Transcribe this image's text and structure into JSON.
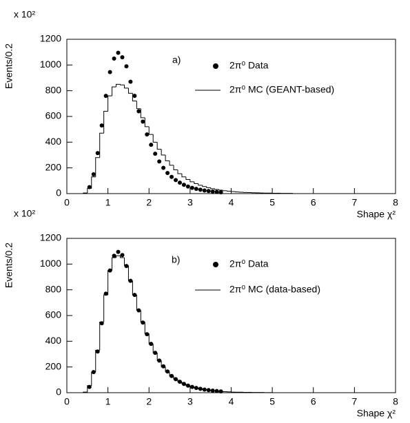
{
  "chart_data": [
    {
      "type": "histogram",
      "multiplier": "x 10²",
      "ylabel": "Events/0.2",
      "xlabel": "Shape χ²",
      "annotation": "a)",
      "xlim": [
        0,
        8
      ],
      "xticks": [
        0,
        1,
        2,
        3,
        4,
        5,
        6,
        7,
        8
      ],
      "ylim": [
        0,
        1200
      ],
      "yticks": [
        0,
        200,
        400,
        600,
        800,
        1000,
        1200
      ],
      "series": [
        {
          "name": "2π⁰ Data",
          "kind": "points",
          "color": "#000000",
          "x": [
            0.55,
            0.65,
            0.75,
            0.85,
            0.95,
            1.05,
            1.15,
            1.25,
            1.35,
            1.45,
            1.55,
            1.65,
            1.75,
            1.85,
            1.95,
            2.05,
            2.15,
            2.25,
            2.35,
            2.45,
            2.55,
            2.65,
            2.75,
            2.85,
            2.95,
            3.05,
            3.15,
            3.25,
            3.35,
            3.45,
            3.55,
            3.65,
            3.75
          ],
          "values": [
            50,
            150,
            315,
            530,
            760,
            945,
            1050,
            1095,
            1060,
            990,
            870,
            760,
            640,
            560,
            460,
            380,
            310,
            250,
            200,
            160,
            130,
            105,
            85,
            68,
            55,
            45,
            37,
            30,
            24,
            20,
            16,
            13,
            10
          ]
        },
        {
          "name": "2π⁰ MC (GEANT-based)",
          "kind": "step",
          "color": "#000000",
          "bins": [
            0.3,
            0.4,
            0.5,
            0.6,
            0.7,
            0.8,
            0.9,
            1.0,
            1.1,
            1.2,
            1.3,
            1.4,
            1.5,
            1.6,
            1.7,
            1.8,
            1.9,
            2.0,
            2.1,
            2.2,
            2.3,
            2.4,
            2.5,
            2.6,
            2.7,
            2.8,
            2.9,
            3.0,
            3.1,
            3.2,
            3.3,
            3.4,
            3.5,
            3.6,
            3.7,
            3.8,
            3.9,
            4.0,
            4.1,
            4.2,
            4.3,
            4.4,
            4.5,
            4.6,
            4.7,
            4.8,
            4.9,
            5.0,
            5.1,
            5.2,
            5.3,
            5.4,
            5.5
          ],
          "values": [
            0,
            5,
            40,
            130,
            280,
            470,
            640,
            760,
            830,
            850,
            845,
            820,
            780,
            720,
            660,
            590,
            520,
            460,
            400,
            345,
            300,
            255,
            220,
            185,
            155,
            130,
            110,
            92,
            78,
            65,
            55,
            46,
            38,
            32,
            27,
            22,
            19,
            16,
            13,
            11,
            9,
            8,
            7,
            6,
            5,
            4,
            4,
            3,
            3,
            2,
            2,
            2
          ]
        }
      ]
    },
    {
      "type": "histogram",
      "multiplier": "x 10²",
      "ylabel": "Events/0.2",
      "xlabel": "Shape χ²",
      "annotation": "b)",
      "xlim": [
        0,
        8
      ],
      "xticks": [
        0,
        1,
        2,
        3,
        4,
        5,
        6,
        7,
        8
      ],
      "ylim": [
        0,
        1200
      ],
      "yticks": [
        0,
        200,
        400,
        600,
        800,
        1000,
        1200
      ],
      "series": [
        {
          "name": "2π⁰ Data",
          "kind": "points",
          "color": "#000000",
          "x": [
            0.55,
            0.65,
            0.75,
            0.85,
            0.95,
            1.05,
            1.15,
            1.25,
            1.35,
            1.45,
            1.55,
            1.65,
            1.75,
            1.85,
            1.95,
            2.05,
            2.15,
            2.25,
            2.35,
            2.45,
            2.55,
            2.65,
            2.75,
            2.85,
            2.95,
            3.05,
            3.15,
            3.25,
            3.35,
            3.45,
            3.55,
            3.65,
            3.75
          ],
          "values": [
            45,
            160,
            320,
            540,
            770,
            950,
            1065,
            1095,
            1070,
            985,
            870,
            760,
            640,
            545,
            455,
            380,
            310,
            250,
            205,
            165,
            130,
            105,
            85,
            68,
            55,
            45,
            37,
            30,
            24,
            20,
            16,
            13,
            10
          ]
        },
        {
          "name": "2π⁰ MC (data-based)",
          "kind": "step",
          "color": "#000000",
          "bins": [
            0.4,
            0.5,
            0.6,
            0.7,
            0.8,
            0.9,
            1.0,
            1.1,
            1.2,
            1.3,
            1.4,
            1.5,
            1.6,
            1.7,
            1.8,
            1.9,
            2.0,
            2.1,
            2.2,
            2.3,
            2.4,
            2.5,
            2.6,
            2.7,
            2.8,
            2.9,
            3.0,
            3.1,
            3.2,
            3.3,
            3.4,
            3.5,
            3.6,
            3.7,
            3.8,
            3.9,
            4.0,
            4.1,
            4.2,
            4.3,
            4.4,
            4.5,
            4.6,
            4.7,
            4.8,
            4.9,
            5.0
          ],
          "values": [
            5,
            55,
            160,
            330,
            550,
            760,
            950,
            1050,
            1065,
            1050,
            990,
            870,
            760,
            640,
            550,
            460,
            380,
            310,
            250,
            200,
            162,
            130,
            105,
            85,
            68,
            55,
            45,
            37,
            30,
            24,
            20,
            16,
            13,
            10,
            8,
            7,
            5,
            4,
            4,
            3,
            3,
            2,
            2,
            2,
            1,
            1
          ]
        }
      ]
    }
  ]
}
